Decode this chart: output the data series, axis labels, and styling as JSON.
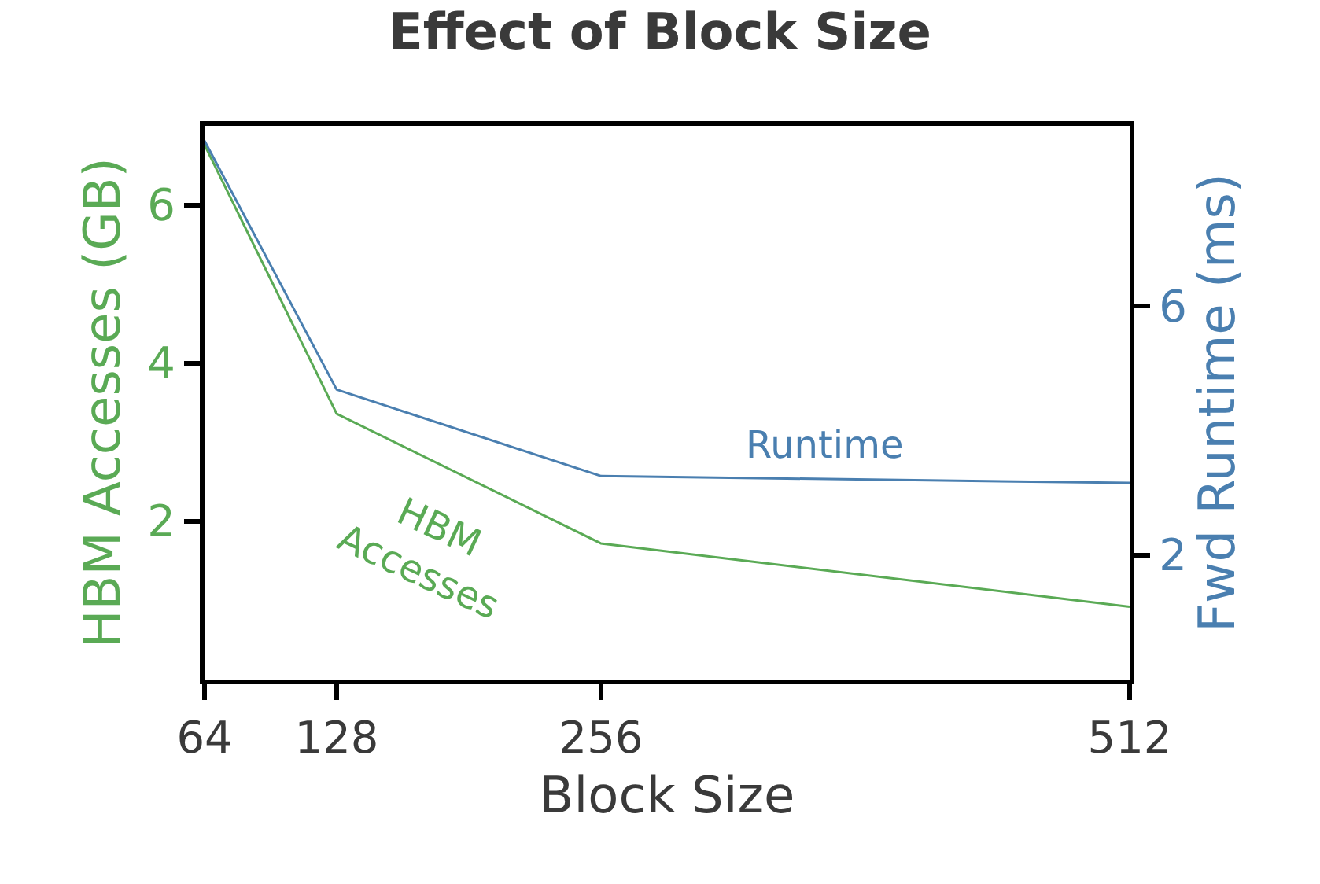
{
  "chart_data": {
    "type": "line",
    "title": "Effect of Block Size",
    "xlabel": "Block Size",
    "ylabel": "HBM Accesses (GB)",
    "y2label": "Fwd Runtime (ms)",
    "x": [
      64,
      128,
      256,
      512
    ],
    "xlim": [
      64,
      512
    ],
    "xticks": [
      64,
      128,
      256,
      512
    ],
    "ylim": [
      0,
      7
    ],
    "yticks": [
      2,
      4,
      6
    ],
    "y2lim": [
      0,
      8.9
    ],
    "y2ticks": [
      2,
      6
    ],
    "series": [
      {
        "name": "HBM Accesses",
        "color": "#5aaa55",
        "values": [
          6.76,
          3.36,
          1.72,
          0.92
        ]
      },
      {
        "name": "Runtime",
        "color": "#4a7fb0",
        "axis": "y2",
        "values": [
          8.66,
          4.66,
          3.27,
          3.16
        ]
      }
    ],
    "marker": "none",
    "line_style": "solid"
  }
}
